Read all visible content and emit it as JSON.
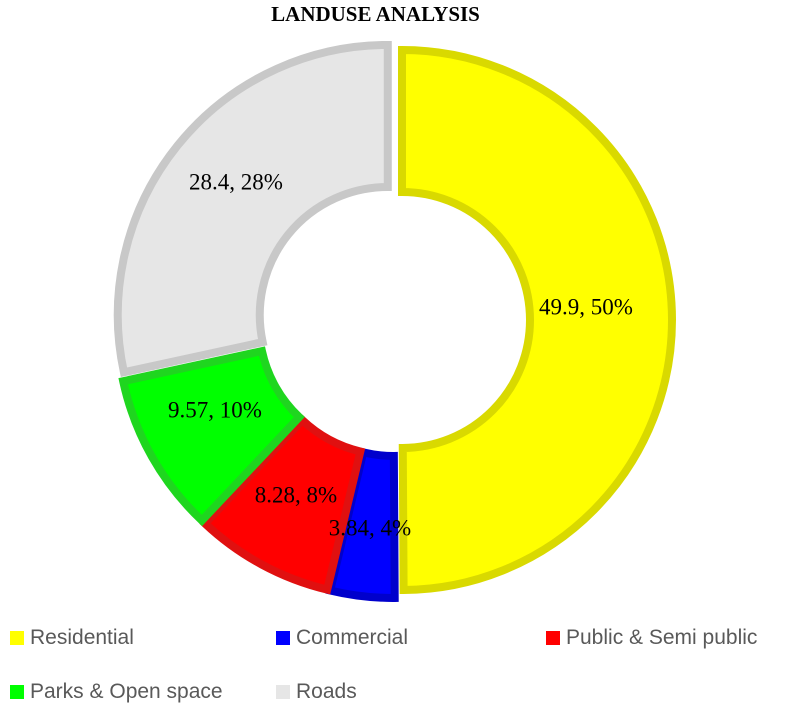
{
  "chart_data": {
    "type": "doughnut",
    "title": "LANDUSE ANALYSIS",
    "categories": [
      "Residential",
      "Commercial",
      "Public & Semi public",
      "Parks & Open space",
      "Roads"
    ],
    "values": [
      49.9,
      3.84,
      8.28,
      9.57,
      28.4
    ],
    "percent_labels": [
      "50%",
      "4%",
      "8%",
      "10%",
      "28%"
    ],
    "data_labels": [
      "49.9, 50%",
      "3.84, 4%",
      "8.28, 8%",
      "9.57, 10%",
      "28.4, 28%"
    ],
    "colors": [
      "#FFFF00",
      "#0000FF",
      "#FF0000",
      "#00FF00",
      "#E6E6E6"
    ],
    "border_colors": [
      "#D9D900",
      "#0000CC",
      "#E01010",
      "#1FD61F",
      "#C8C8C8"
    ],
    "legend_position": "bottom"
  }
}
